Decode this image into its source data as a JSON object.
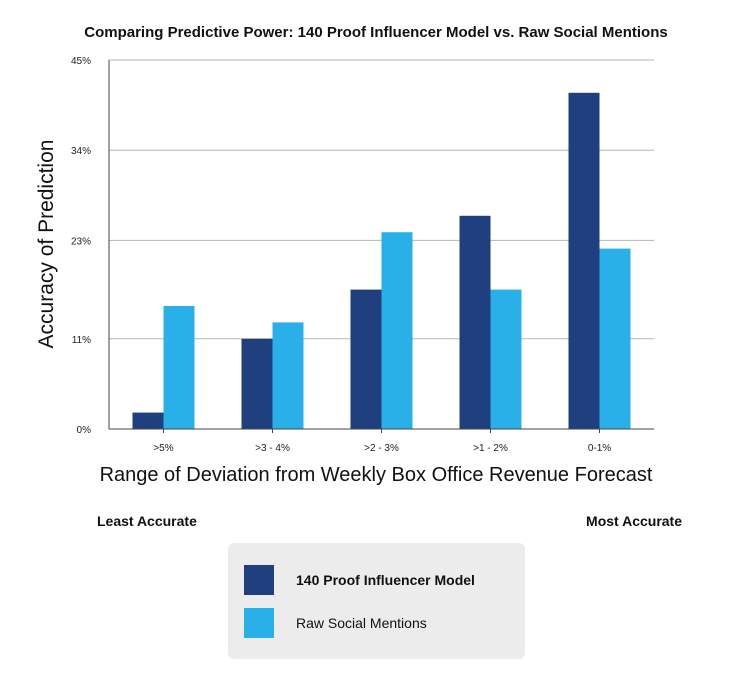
{
  "chart_data": {
    "type": "bar",
    "title": "Comparing Predictive Power: 140 Proof Influencer Model vs. Raw Social Mentions",
    "xlabel": "Range of Deviation from Weekly Box Office Revenue Forecast",
    "ylabel": "Accuracy of Prediction",
    "categories": [
      ">5%",
      ">3 - 4%",
      ">2 - 3%",
      ">1 - 2%",
      "0-1%"
    ],
    "y_ticks": [
      "0%",
      "11%",
      "23%",
      "34%",
      "45%"
    ],
    "ylim": [
      0,
      45
    ],
    "grid": true,
    "series": [
      {
        "name": "140 Proof Influencer Model",
        "color": "#1f3f7f",
        "values": [
          2,
          11,
          17,
          26,
          41
        ]
      },
      {
        "name": "Raw Social Mentions",
        "color": "#2ab0e8",
        "values": [
          15,
          13,
          24,
          17,
          22
        ]
      }
    ],
    "annotations": {
      "left": "Least Accurate",
      "right": "Most Accurate"
    },
    "legend_placement": "bottom"
  }
}
